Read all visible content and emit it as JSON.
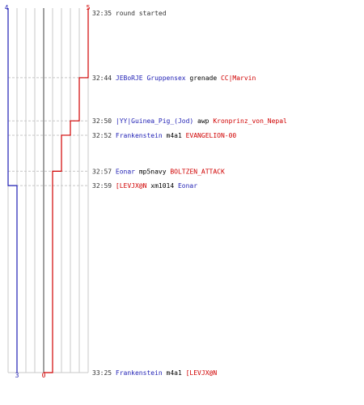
{
  "colors": {
    "blue": "#1f1fb4",
    "red": "#d00000",
    "grid": "#c8c8c8",
    "zero_line": "#777777",
    "text": "#333333",
    "black": "#000000"
  },
  "chart_data": {
    "type": "line",
    "x_unit": "round score",
    "y_unit": "time mm:ss (downward)",
    "x_range": [
      0,
      5
    ],
    "start_labels": {
      "blue": "4",
      "red": "5"
    },
    "end_labels": {
      "blue": "3",
      "red": "0"
    },
    "series": [
      {
        "color": "blue",
        "steps": [
          {
            "time": "32:35",
            "value": 4
          },
          {
            "time": "32:59",
            "value": 3
          },
          {
            "time": "33:25",
            "value": 3
          }
        ]
      },
      {
        "color": "red",
        "steps": [
          {
            "time": "32:35",
            "value": 5
          },
          {
            "time": "32:44",
            "value": 4
          },
          {
            "time": "32:50",
            "value": 3
          },
          {
            "time": "32:52",
            "value": 2
          },
          {
            "time": "32:57",
            "value": 1
          },
          {
            "time": "33:25",
            "value": 0
          }
        ]
      }
    ],
    "events": [
      {
        "time": "32:35",
        "segments": [
          {
            "text": "round started",
            "color": "gray"
          }
        ]
      },
      {
        "time": "32:44",
        "segments": [
          {
            "text": "JEBoRJE Gruppensex",
            "color": "blue"
          },
          {
            "text": " grenade ",
            "color": "black"
          },
          {
            "text": "CC|Marvin",
            "color": "red"
          }
        ]
      },
      {
        "time": "32:50",
        "segments": [
          {
            "text": "|YY|Guinea_Pig_(Jod)",
            "color": "blue"
          },
          {
            "text": " awp ",
            "color": "black"
          },
          {
            "text": "Kronprinz_von_Nepal",
            "color": "red"
          }
        ]
      },
      {
        "time": "32:52",
        "segments": [
          {
            "text": "Frankenstein",
            "color": "blue"
          },
          {
            "text": " m4a1 ",
            "color": "black"
          },
          {
            "text": "EVANGELION-00",
            "color": "red"
          }
        ]
      },
      {
        "time": "32:57",
        "segments": [
          {
            "text": "Eonar",
            "color": "blue"
          },
          {
            "text": " mp5navy ",
            "color": "black"
          },
          {
            "text": "BOLTZEN_ATTACK",
            "color": "red"
          }
        ]
      },
      {
        "time": "32:59",
        "segments": [
          {
            "text": "[LEVJX@N",
            "color": "red"
          },
          {
            "text": " xm1014 ",
            "color": "black"
          },
          {
            "text": "Eonar",
            "color": "blue"
          }
        ]
      },
      {
        "time": "33:25",
        "segments": [
          {
            "text": "Frankenstein",
            "color": "blue"
          },
          {
            "text": " m4a1 ",
            "color": "black"
          },
          {
            "text": "[LEVJX@N",
            "color": "red"
          }
        ]
      }
    ]
  }
}
